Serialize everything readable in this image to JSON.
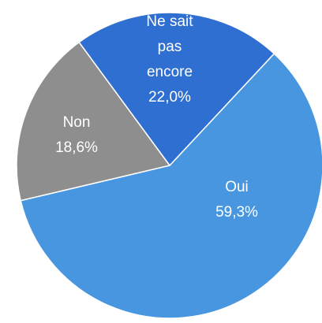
{
  "chart_data": {
    "type": "pie",
    "categories": [
      "Oui",
      "Non",
      "Ne sait pas encore"
    ],
    "values": [
      59.3,
      18.6,
      22.0
    ],
    "value_labels": [
      "59,3%",
      "18,6%",
      "22,0%"
    ],
    "colors": [
      "#4896e0",
      "#8e8e8e",
      "#2f6fd2"
    ]
  }
}
